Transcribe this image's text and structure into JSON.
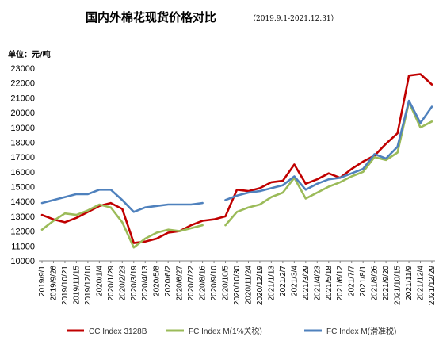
{
  "chart_data": {
    "type": "line",
    "title": "国内外棉花现货价格对比",
    "subtitle": "（2019.9.1-2021.12.31）",
    "ylabel": "单位：元/吨",
    "xlabel": "",
    "ylim": [
      10000,
      23000
    ],
    "yticks": [
      10000,
      11000,
      12000,
      13000,
      14000,
      15000,
      16000,
      17000,
      18000,
      19000,
      20000,
      21000,
      22000,
      23000
    ],
    "xticks": [
      "2019/9/1",
      "2019/9/26",
      "2019/10/21",
      "2019/11/15",
      "2019/12/10",
      "2020/1/4",
      "2020/1/29",
      "2020/2/23",
      "2020/3/19",
      "2020/4/13",
      "2020/5/8",
      "2020/6/2",
      "2020/6/27",
      "2020/7/22",
      "2020/8/16",
      "2020/9/10",
      "2020/10/5",
      "2020/10/30",
      "2020/11/24",
      "2020/12/19",
      "2021/1/13",
      "2021/2/7",
      "2021/3/4",
      "2021/3/29",
      "2021/4/23",
      "2021/5/18",
      "2021/6/12",
      "2021/7/7",
      "2021/8/1",
      "2021/8/26",
      "2021/9/20",
      "2021/10/15",
      "2021/11/9",
      "2021/12/4",
      "2021/12/29"
    ],
    "grid": false,
    "legend_position": "bottom",
    "series": [
      {
        "name": "CC Index 3128B",
        "color": "#c00000",
        "x": [
          "2019/9/1",
          "2019/9/26",
          "2019/10/21",
          "2019/11/15",
          "2019/12/10",
          "2020/1/4",
          "2020/1/29",
          "2020/2/23",
          "2020/3/19",
          "2020/4/13",
          "2020/5/8",
          "2020/6/2",
          "2020/6/27",
          "2020/7/22",
          "2020/8/16",
          "2020/9/10",
          "2020/10/5",
          "2020/10/30",
          "2020/11/24",
          "2020/12/19",
          "2021/1/13",
          "2021/2/7",
          "2021/3/4",
          "2021/3/29",
          "2021/4/23",
          "2021/5/18",
          "2021/6/12",
          "2021/7/7",
          "2021/8/1",
          "2021/8/26",
          "2021/9/20",
          "2021/10/15",
          "2021/11/9",
          "2021/12/4",
          "2021/12/29"
        ],
        "values": [
          13100,
          12800,
          12600,
          12900,
          13300,
          13700,
          13900,
          13500,
          11200,
          11300,
          11500,
          11900,
          12000,
          12400,
          12700,
          12800,
          13000,
          14800,
          14700,
          14900,
          15300,
          15400,
          16500,
          15200,
          15500,
          15900,
          15600,
          16200,
          16700,
          17100,
          17900,
          18600,
          22500,
          22600,
          21900
        ]
      },
      {
        "name": "FC Index M(1%关税)",
        "color": "#9bbb59",
        "x": [
          "2019/9/1",
          "2019/9/26",
          "2019/10/21",
          "2019/11/15",
          "2019/12/10",
          "2020/1/4",
          "2020/1/29",
          "2020/2/23",
          "2020/3/19",
          "2020/4/13",
          "2020/5/8",
          "2020/6/2",
          "2020/6/27",
          "2020/7/22",
          "2020/8/16",
          "2020/9/10",
          "2020/10/5",
          "2020/10/30",
          "2020/11/24",
          "2020/12/19",
          "2021/1/13",
          "2021/2/7",
          "2021/3/4",
          "2021/3/29",
          "2021/4/23",
          "2021/5/18",
          "2021/6/12",
          "2021/7/7",
          "2021/8/1",
          "2021/8/26",
          "2021/9/20",
          "2021/10/15",
          "2021/11/9",
          "2021/12/4",
          "2021/12/29"
        ],
        "values": [
          12100,
          12700,
          13200,
          13100,
          13400,
          13800,
          13600,
          12600,
          10900,
          11500,
          11900,
          12100,
          12000,
          12200,
          12400,
          null,
          12400,
          13300,
          13600,
          13800,
          14300,
          14600,
          15600,
          14200,
          14600,
          15000,
          15300,
          15700,
          16000,
          17000,
          16800,
          17300,
          20700,
          19000,
          19400
        ]
      },
      {
        "name": "FC Index M(滑准税)",
        "color": "#4f81bd",
        "x": [
          "2019/9/1",
          "2019/9/26",
          "2019/10/21",
          "2019/11/15",
          "2019/12/10",
          "2020/1/4",
          "2020/1/29",
          "2020/2/23",
          "2020/3/19",
          "2020/4/13",
          "2020/5/8",
          "2020/6/2",
          "2020/6/27",
          "2020/7/22",
          "2020/8/16",
          "2020/9/10",
          "2020/10/5",
          "2020/10/30",
          "2020/11/24",
          "2020/12/19",
          "2021/1/13",
          "2021/2/7",
          "2021/3/4",
          "2021/3/29",
          "2021/4/23",
          "2021/5/18",
          "2021/6/12",
          "2021/7/7",
          "2021/8/1",
          "2021/8/26",
          "2021/9/20",
          "2021/10/15",
          "2021/11/9",
          "2021/12/4",
          "2021/12/29"
        ],
        "values": [
          13900,
          14100,
          14300,
          14500,
          14500,
          14800,
          14800,
          14100,
          13300,
          13600,
          13700,
          13800,
          13800,
          13800,
          13900,
          null,
          14100,
          14400,
          14600,
          14700,
          14900,
          15100,
          15700,
          14800,
          15200,
          15500,
          15600,
          15900,
          16200,
          17200,
          16900,
          17700,
          20800,
          19300,
          20400
        ]
      }
    ]
  }
}
